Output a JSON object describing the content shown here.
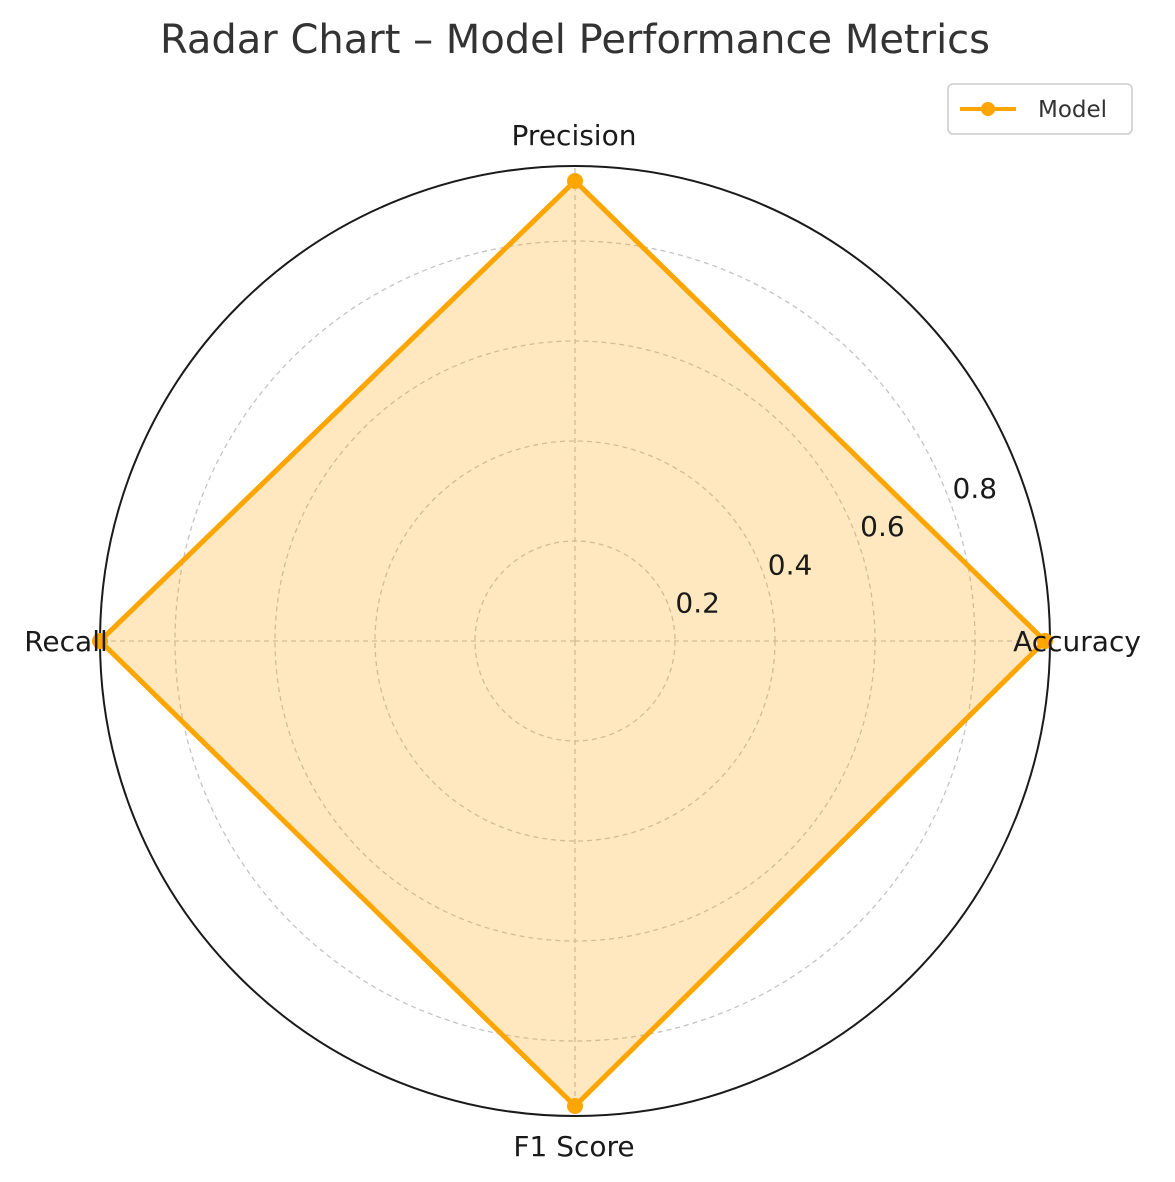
{
  "chart_data": {
    "type": "radar",
    "title": "Radar Chart – Model Performance Metrics",
    "categories": [
      "Accuracy",
      "Precision",
      "Recall",
      "F1 Score"
    ],
    "series": [
      {
        "name": "Model",
        "values": [
          0.94,
          0.92,
          0.95,
          0.93
        ],
        "color": "#FFA500"
      }
    ],
    "rlim": [
      0,
      0.95
    ],
    "rticks": [
      0.2,
      0.4,
      0.6,
      0.8
    ],
    "rtick_labels": [
      "0.2",
      "0.4",
      "0.6",
      "0.8"
    ],
    "grid": true,
    "legend": "top-right"
  }
}
